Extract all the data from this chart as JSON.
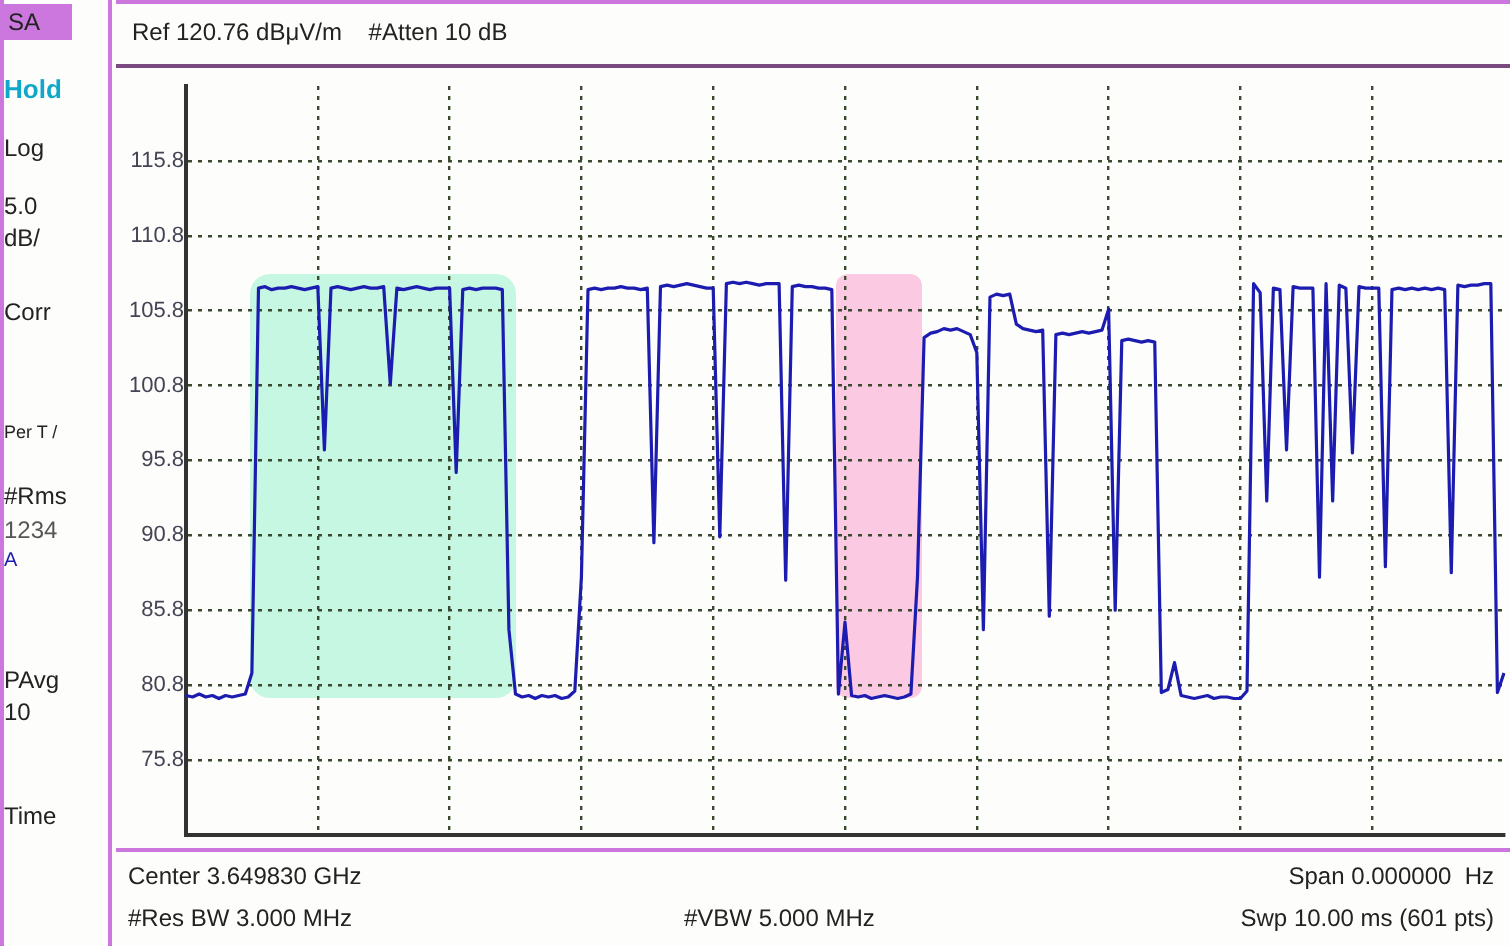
{
  "chart_data": {
    "type": "line",
    "annotations": [
      "SA",
      "Hold",
      "Log",
      "5.0 dB/",
      "Corr",
      "Per T /",
      "#Rms",
      "1234",
      "A",
      "PAvg 10",
      "Time",
      "Ref 120.76 dBμV/m    #Atten 10 dB",
      "Center 3.649830 GHz",
      "Span 0.000000  Hz",
      "#Res BW 3.000 MHz",
      "#VBW 5.000 MHz",
      "Swp 10.00 ms (601 pts)"
    ],
    "categories": [
      null,
      null,
      null,
      null,
      null,
      null,
      null,
      null,
      null,
      null,
      null,
      null,
      null,
      null,
      null,
      null,
      null,
      null,
      null,
      null,
      null,
      null,
      null,
      null,
      null,
      null,
      null,
      null,
      null,
      null,
      null,
      null,
      null,
      null,
      null,
      null,
      null,
      null,
      null,
      null,
      null,
      null,
      null,
      null,
      null,
      null,
      null,
      null,
      null,
      null,
      null,
      null,
      null,
      null,
      null,
      null,
      null,
      null,
      null,
      null,
      null,
      null,
      null,
      null,
      null,
      null,
      null,
      null,
      null,
      null,
      null,
      null,
      null,
      null,
      null,
      null,
      null,
      null,
      null,
      null,
      null,
      null,
      null,
      null,
      null,
      null,
      null,
      null,
      null,
      null,
      null,
      null,
      null,
      null,
      null,
      null,
      null,
      null,
      null,
      null,
      null,
      null,
      null,
      null,
      null,
      null,
      null,
      null,
      null,
      null,
      null,
      null,
      null,
      null,
      null,
      null,
      null,
      null,
      null,
      null,
      null,
      null,
      null,
      null,
      null,
      null,
      null,
      null,
      null,
      null,
      null,
      null,
      null,
      null,
      null,
      null,
      null,
      null,
      null,
      null,
      null,
      null,
      null,
      null,
      null,
      null,
      null,
      null,
      null,
      null,
      null,
      null,
      null,
      null,
      null,
      null,
      null,
      null,
      null,
      null,
      null,
      null,
      null,
      null,
      null,
      null,
      null,
      null,
      null,
      null,
      null,
      null,
      null,
      null,
      null,
      null,
      null,
      null,
      null,
      null,
      null,
      null,
      null,
      null,
      null,
      null,
      null,
      null,
      null,
      null,
      null,
      null,
      null,
      null,
      null,
      null,
      null,
      null,
      null,
      null,
      null
    ],
    "series": [
      {
        "color": "#1c1cb0",
        "values": [
          80.1,
          80.0,
          80.2,
          80.0,
          80.1,
          79.9,
          80.1,
          80.0,
          80.1,
          80.2,
          81.6,
          107.3,
          107.4,
          107.2,
          107.3,
          107.3,
          107.4,
          107.3,
          107.2,
          107.3,
          107.4,
          96.5,
          107.3,
          107.4,
          107.3,
          107.2,
          107.3,
          107.4,
          107.3,
          107.3,
          107.4,
          100.9,
          107.3,
          107.2,
          107.3,
          107.4,
          107.3,
          107.2,
          107.3,
          107.3,
          107.3,
          95.0,
          107.2,
          107.3,
          107.2,
          107.3,
          107.3,
          107.3,
          107.2,
          84.5,
          80.2,
          80.0,
          80.1,
          79.9,
          80.1,
          80.0,
          80.1,
          79.9,
          80.0,
          80.4,
          88.0,
          107.2,
          107.3,
          107.2,
          107.3,
          107.3,
          107.4,
          107.3,
          107.3,
          107.2,
          107.3,
          90.3,
          107.4,
          107.5,
          107.4,
          107.5,
          107.6,
          107.5,
          107.4,
          107.3,
          107.3,
          90.7,
          107.6,
          107.7,
          107.6,
          107.7,
          107.6,
          107.5,
          107.6,
          107.6,
          107.6,
          87.8,
          107.4,
          107.5,
          107.4,
          107.4,
          107.3,
          107.3,
          107.2,
          80.2,
          85.0,
          80.1,
          80.0,
          80.1,
          79.9,
          80.0,
          80.1,
          80.0,
          79.9,
          80.0,
          80.2,
          88.0,
          104.0,
          104.3,
          104.4,
          104.6,
          104.5,
          104.6,
          104.4,
          104.2,
          103.0,
          84.5,
          106.7,
          106.9,
          106.8,
          106.9,
          104.9,
          104.6,
          104.5,
          104.4,
          104.5,
          85.4,
          104.2,
          104.3,
          104.2,
          104.3,
          104.4,
          104.3,
          104.4,
          104.5,
          105.9,
          85.8,
          103.8,
          103.9,
          103.8,
          103.7,
          103.8,
          103.7,
          80.3,
          80.5,
          82.3,
          80.1,
          80.0,
          79.9,
          80.0,
          80.1,
          79.9,
          80.0,
          80.0,
          79.9,
          79.9,
          80.4,
          107.6,
          107.0,
          93.1,
          107.3,
          107.2,
          96.5,
          107.4,
          107.3,
          107.3,
          107.3,
          88.0,
          107.6,
          93.1,
          107.5,
          107.3,
          96.3,
          107.4,
          107.3,
          107.3,
          107.3,
          88.7,
          107.2,
          107.3,
          107.2,
          107.3,
          107.2,
          107.3,
          107.2,
          107.3,
          107.2,
          88.3,
          107.5,
          107.4,
          107.5,
          107.5,
          107.6,
          107.6,
          80.3,
          81.6
        ]
      }
    ],
    "ylim": [
      70.8,
      120.8
    ],
    "yticks": [
      75.8,
      80.8,
      85.8,
      90.8,
      95.8,
      100.8,
      105.8,
      110.8,
      115.8
    ],
    "tick_labels": "y",
    "grid": true,
    "legend": false,
    "marker": "none",
    "line_style": "solid"
  }
}
